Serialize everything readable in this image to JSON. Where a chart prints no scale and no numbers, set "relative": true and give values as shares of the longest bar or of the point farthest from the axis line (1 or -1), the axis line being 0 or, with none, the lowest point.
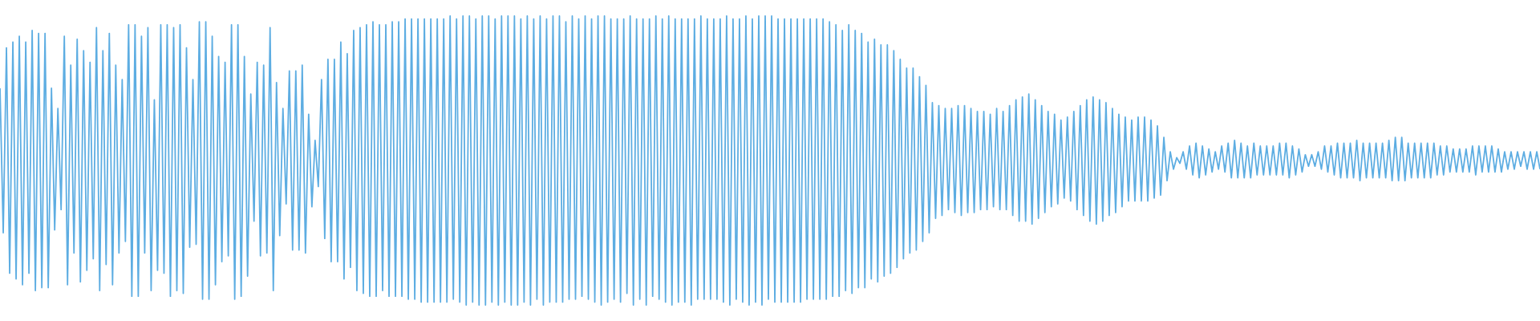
{
  "chart_data": {
    "type": "line",
    "relative": true,
    "color": "#5dade2",
    "categories": [
      null,
      null,
      null,
      null,
      null,
      null,
      null,
      null,
      null,
      null,
      null,
      null,
      null,
      null,
      null,
      null,
      null,
      null,
      null,
      null,
      null,
      null,
      null,
      null,
      null,
      null,
      null,
      null,
      null,
      null,
      null,
      null,
      null,
      null,
      null,
      null,
      null,
      null,
      null,
      null,
      null,
      null,
      null,
      null,
      null,
      null,
      null,
      null,
      null,
      null,
      null,
      null,
      null,
      null,
      null,
      null,
      null,
      null,
      null,
      null,
      null,
      null,
      null,
      null,
      null,
      null,
      null,
      null,
      null,
      null,
      null,
      null,
      null,
      null,
      null,
      null,
      null,
      null,
      null,
      null,
      null,
      null,
      null,
      null,
      null,
      null,
      null,
      null,
      null,
      null,
      null,
      null,
      null,
      null,
      null,
      null,
      null,
      null,
      null,
      null,
      null,
      null,
      null,
      null,
      null,
      null,
      null,
      null,
      null,
      null,
      null,
      null,
      null,
      null,
      null,
      null,
      null,
      null,
      null,
      null,
      null,
      null,
      null,
      null,
      null,
      null,
      null,
      null,
      null,
      null,
      null,
      null,
      null,
      null,
      null,
      null,
      null,
      null,
      null,
      null,
      null,
      null,
      null,
      null,
      null,
      null,
      null,
      null,
      null,
      null,
      null,
      null,
      null,
      null,
      null,
      null,
      null,
      null,
      null,
      null,
      null,
      null,
      null,
      null,
      null,
      null,
      null,
      null,
      null,
      null,
      null,
      null,
      null,
      null,
      null,
      null,
      null,
      null,
      null,
      null,
      null,
      null,
      null,
      null,
      null,
      null,
      null,
      null,
      null,
      null,
      null,
      null,
      null,
      null,
      null,
      null,
      null,
      null,
      null,
      null,
      null,
      null,
      null,
      null,
      null,
      null,
      null,
      null,
      null,
      null,
      null,
      null,
      null,
      null,
      null,
      null,
      null,
      null,
      null,
      null,
      null,
      null,
      null,
      null,
      null,
      null,
      null,
      null,
      null,
      null,
      null,
      null,
      null,
      null,
      null,
      null,
      null,
      null,
      null,
      null,
      null,
      null,
      null,
      null,
      null,
      null,
      null,
      null,
      null,
      null,
      null,
      null,
      null,
      null,
      null,
      null,
      null,
      null,
      null,
      null,
      null,
      null,
      null,
      null,
      null,
      null,
      null,
      null,
      null,
      null,
      null,
      null,
      null,
      null,
      null,
      null,
      null,
      null,
      null,
      null,
      null,
      null,
      null,
      null,
      null,
      null,
      null,
      null,
      null,
      null,
      null,
      null,
      null,
      null,
      null,
      null,
      null,
      null,
      null,
      null,
      null,
      null,
      null,
      null,
      null,
      null,
      null,
      null,
      null,
      null,
      null,
      null,
      null,
      null,
      null,
      null,
      null,
      null,
      null,
      null,
      null,
      null,
      null,
      null,
      null,
      null,
      null,
      null,
      null,
      null,
      null,
      null,
      null,
      null,
      null,
      null,
      null,
      null,
      null,
      null,
      null,
      null,
      null,
      null,
      null,
      null,
      null,
      null,
      null,
      null,
      null,
      null,
      null,
      null,
      null,
      null,
      null,
      null,
      null,
      null,
      null,
      null,
      null,
      null,
      null,
      null,
      null,
      null,
      null,
      null,
      null,
      null,
      null,
      null,
      null,
      null,
      null,
      null,
      null,
      null,
      null,
      null,
      null,
      null,
      null,
      null,
      null,
      null,
      null,
      null,
      null,
      null,
      null,
      null,
      null,
      null,
      null,
      null,
      null,
      null,
      null,
      null,
      null,
      null,
      null,
      null,
      null,
      null,
      null,
      null,
      null,
      null,
      null,
      null,
      null,
      null,
      null,
      null,
      null,
      null,
      null,
      null,
      null,
      null,
      null,
      null,
      null,
      null,
      null,
      null,
      null,
      null,
      null,
      null,
      null,
      null,
      null,
      null,
      null,
      null,
      null,
      null,
      null,
      null,
      null,
      null,
      null,
      null,
      null,
      null,
      null,
      null,
      null,
      null,
      null,
      null,
      null,
      null,
      null,
      null,
      null,
      null,
      null,
      null,
      null,
      null,
      null,
      null,
      null,
      null,
      null,
      null,
      null,
      null,
      null,
      null,
      null,
      null,
      null,
      null
    ],
    "values": [
      0.75,
      0.25,
      0.89,
      0.11,
      0.91,
      0.09,
      0.93,
      0.07,
      0.91,
      0.11,
      0.95,
      0.05,
      0.94,
      0.06,
      0.94,
      0.06,
      0.75,
      0.26,
      0.68,
      0.33,
      0.93,
      0.07,
      0.83,
      0.18,
      0.92,
      0.08,
      0.88,
      0.12,
      0.84,
      0.16,
      0.96,
      0.05,
      0.88,
      0.14,
      0.94,
      0.07,
      0.83,
      0.18,
      0.78,
      0.22,
      0.97,
      0.03,
      0.97,
      0.03,
      0.93,
      0.18,
      0.96,
      0.05,
      0.71,
      0.12,
      0.97,
      0.11,
      0.97,
      0.03,
      0.96,
      0.05,
      0.97,
      0.04,
      0.89,
      0.2,
      0.78,
      0.21,
      0.98,
      0.02,
      0.98,
      0.02,
      0.93,
      0.07,
      0.86,
      0.15,
      0.84,
      0.17,
      0.97,
      0.02,
      0.97,
      0.03,
      0.86,
      0.1,
      0.73,
      0.29,
      0.84,
      0.17,
      0.83,
      0.18,
      0.96,
      0.05,
      0.77,
      0.24,
      0.68,
      0.35,
      0.81,
      0.19,
      0.81,
      0.19,
      0.83,
      0.18,
      0.66,
      0.34,
      0.57,
      0.41,
      0.78,
      0.23,
      0.85,
      0.15,
      0.85,
      0.15,
      0.91,
      0.09,
      0.87,
      0.13,
      0.95,
      0.05,
      0.96,
      0.04,
      0.97,
      0.03,
      0.98,
      0.03,
      0.97,
      0.05,
      0.97,
      0.03,
      0.98,
      0.03,
      0.98,
      0.03,
      0.99,
      0.02,
      0.99,
      0.02,
      0.99,
      0.01,
      0.99,
      0.01,
      0.99,
      0.01,
      0.99,
      0.01,
      0.99,
      0.01,
      1.0,
      0.02,
      0.99,
      0.01,
      1.0,
      0.0,
      1.0,
      0.01,
      0.99,
      0.0,
      1.0,
      0.0,
      1.0,
      0.01,
      0.99,
      0.0,
      1.0,
      0.01,
      1.0,
      0.0,
      1.0,
      0.0,
      0.99,
      0.01,
      1.0,
      0.0,
      0.99,
      0.02,
      1.0,
      0.0,
      0.99,
      0.01,
      1.0,
      0.01,
      1.0,
      0.01,
      0.98,
      0.02,
      1.0,
      0.02,
      0.99,
      0.03,
      1.0,
      0.02,
      0.99,
      0.01,
      1.0,
      0.0,
      1.0,
      0.01,
      0.99,
      0.02,
      0.99,
      0.01,
      0.99,
      0.04,
      1.0,
      0.0,
      0.99,
      0.02,
      0.99,
      0.0,
      0.99,
      0.03,
      1.0,
      0.02,
      0.99,
      0.01,
      1.0,
      0.0,
      0.99,
      0.01,
      0.99,
      0.01,
      0.99,
      0.0,
      0.99,
      0.02,
      1.0,
      0.02,
      0.99,
      0.02,
      0.99,
      0.02,
      0.99,
      0.01,
      1.0,
      0.0,
      0.99,
      0.02,
      0.99,
      0.01,
      1.0,
      0.0,
      0.99,
      0.01,
      1.0,
      0.0,
      1.0,
      0.02,
      1.0,
      0.01,
      0.99,
      0.01,
      0.99,
      0.01,
      0.99,
      0.01,
      0.99,
      0.01,
      0.99,
      0.02,
      0.99,
      0.02,
      0.99,
      0.02,
      0.99,
      0.02,
      0.98,
      0.03,
      0.97,
      0.03,
      0.95,
      0.05,
      0.97,
      0.04,
      0.95,
      0.06,
      0.94,
      0.06,
      0.91,
      0.09,
      0.92,
      0.08,
      0.9,
      0.1,
      0.9,
      0.11,
      0.88,
      0.13,
      0.85,
      0.16,
      0.82,
      0.18,
      0.82,
      0.19,
      0.79,
      0.22,
      0.76,
      0.25,
      0.7,
      0.3,
      0.69,
      0.31,
      0.68,
      0.33,
      0.68,
      0.32,
      0.69,
      0.31,
      0.69,
      0.32,
      0.68,
      0.32,
      0.67,
      0.33,
      0.67,
      0.33,
      0.66,
      0.34,
      0.68,
      0.33,
      0.67,
      0.33,
      0.69,
      0.31,
      0.71,
      0.29,
      0.72,
      0.29,
      0.73,
      0.28,
      0.71,
      0.3,
      0.69,
      0.32,
      0.67,
      0.34,
      0.66,
      0.35,
      0.64,
      0.37,
      0.65,
      0.36,
      0.67,
      0.33,
      0.69,
      0.31,
      0.71,
      0.29,
      0.72,
      0.28,
      0.71,
      0.29,
      0.7,
      0.31,
      0.68,
      0.32,
      0.66,
      0.34,
      0.65,
      0.36,
      0.64,
      0.36,
      0.65,
      0.36,
      0.65,
      0.36,
      0.64,
      0.37,
      0.62,
      0.38,
      0.58,
      0.43,
      0.53,
      0.47,
      0.51,
      0.49,
      0.53,
      0.47,
      0.55,
      0.45,
      0.56,
      0.44,
      0.55,
      0.45,
      0.54,
      0.46,
      0.53,
      0.47,
      0.55,
      0.46,
      0.56,
      0.44,
      0.57,
      0.44,
      0.56,
      0.44,
      0.55,
      0.44,
      0.56,
      0.45,
      0.55,
      0.45,
      0.55,
      0.45,
      0.55,
      0.45,
      0.56,
      0.45,
      0.56,
      0.44,
      0.55,
      0.45,
      0.54,
      0.46,
      0.52,
      0.48,
      0.52,
      0.48,
      0.53,
      0.47,
      0.55,
      0.46,
      0.55,
      0.45,
      0.56,
      0.44,
      0.56,
      0.44,
      0.56,
      0.44,
      0.57,
      0.43,
      0.56,
      0.44,
      0.56,
      0.44,
      0.56,
      0.44,
      0.56,
      0.44,
      0.57,
      0.43,
      0.58,
      0.43,
      0.58,
      0.43,
      0.56,
      0.44,
      0.56,
      0.44,
      0.56,
      0.44,
      0.56,
      0.44,
      0.56,
      0.45,
      0.55,
      0.45,
      0.55,
      0.46,
      0.54,
      0.46,
      0.54,
      0.46,
      0.54,
      0.46,
      0.55,
      0.45,
      0.55,
      0.46,
      0.55,
      0.46,
      0.55,
      0.46,
      0.54,
      0.46,
      0.53,
      0.47,
      0.53,
      0.47,
      0.53,
      0.48,
      0.53,
      0.47,
      0.53,
      0.47,
      0.53,
      0.47
    ]
  }
}
